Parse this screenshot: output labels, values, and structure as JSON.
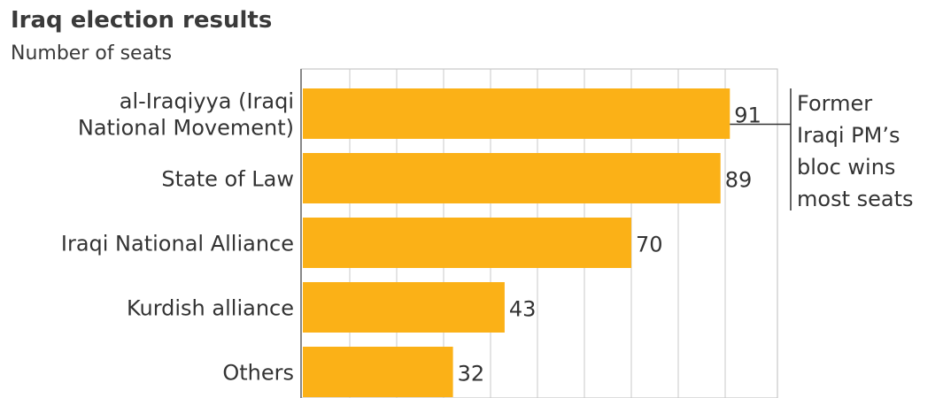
{
  "chart_data": {
    "type": "bar",
    "orientation": "horizontal",
    "title": "Iraq election results",
    "subtitle": "Number of seats",
    "categories": [
      [
        "al-Iraqiyya (Iraqi",
        "National Movement)"
      ],
      [
        "State of Law"
      ],
      [
        "Iraqi National Alliance"
      ],
      [
        "Kurdish alliance"
      ],
      [
        "Others"
      ]
    ],
    "values": [
      91,
      89,
      70,
      43,
      32
    ],
    "xlim": [
      0,
      100
    ],
    "grid": true,
    "bar_color": "#FBB117",
    "annotation": {
      "target_category_index": 0,
      "lines": [
        "Former",
        "Iraqi PM’s",
        "bloc wins",
        "most seats"
      ]
    }
  }
}
